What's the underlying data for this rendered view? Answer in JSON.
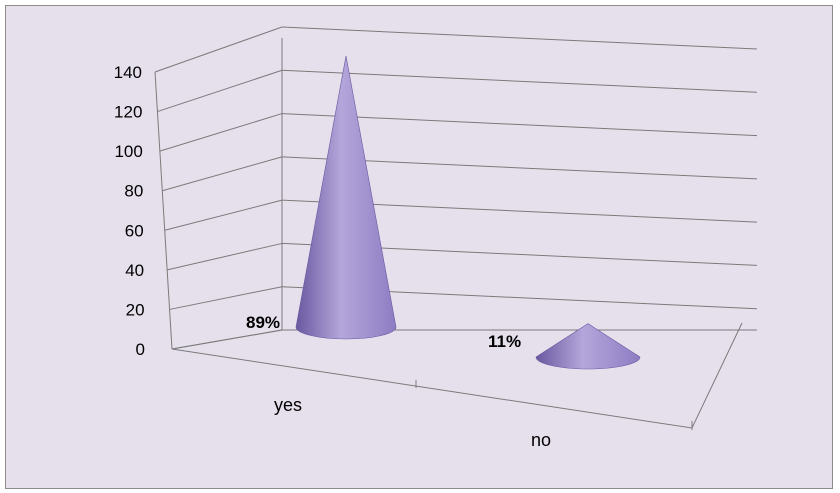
{
  "chart_data": {
    "type": "bar",
    "style": "3d-cone",
    "categories": [
      "yes",
      "no"
    ],
    "values": [
      138,
      17
    ],
    "data_labels": [
      "89%",
      "11%"
    ],
    "yticks": [
      "0",
      "20",
      "40",
      "60",
      "80",
      "100",
      "120",
      "140"
    ],
    "ylim": [
      0,
      140
    ],
    "grid": true,
    "legend": "none",
    "colors": {
      "background": "#e6e0ed",
      "cone": "#8e7cc3",
      "cone_dark": "#6a58a0",
      "cone_light": "#b4a6da",
      "gridline": "#7a7a7a"
    }
  }
}
